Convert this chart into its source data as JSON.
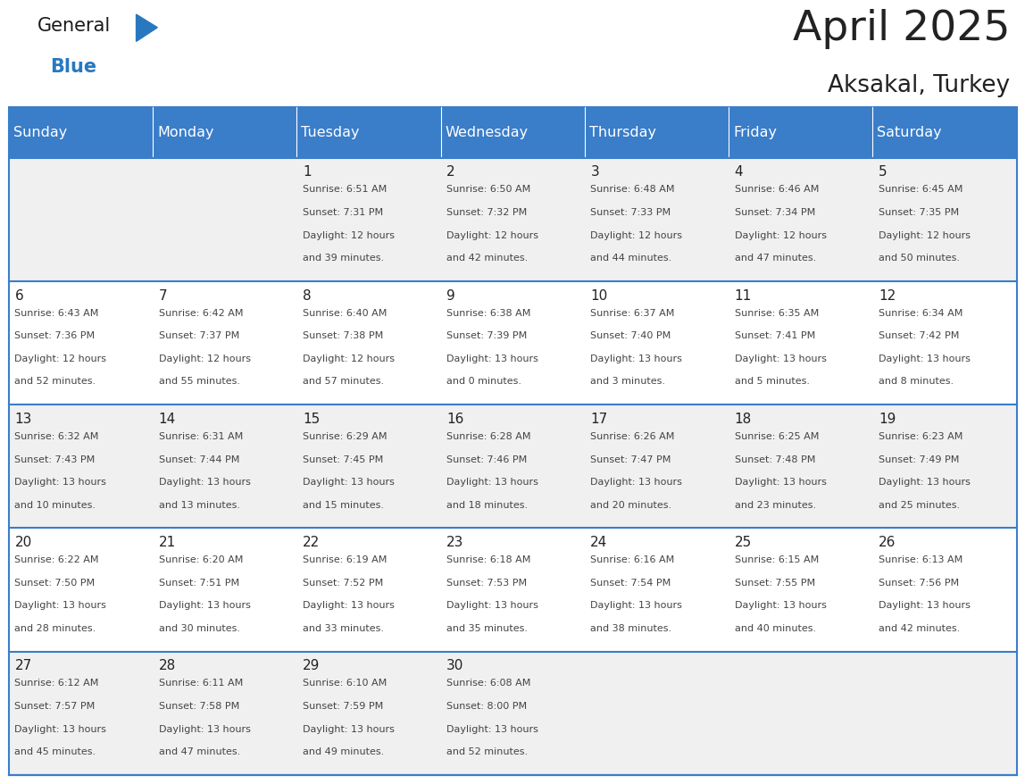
{
  "title": "April 2025",
  "subtitle": "Aksakal, Turkey",
  "header_bg": "#3A7DC9",
  "header_text_color": "#FFFFFF",
  "day_headers": [
    "Sunday",
    "Monday",
    "Tuesday",
    "Wednesday",
    "Thursday",
    "Friday",
    "Saturday"
  ],
  "cell_bg_even": "#F0F0F0",
  "cell_bg_odd": "#FFFFFF",
  "row_separator_color": "#3A7DC9",
  "text_color": "#444444",
  "number_color": "#222222",
  "logo_general_color": "#1a1a1a",
  "logo_blue_color": "#2878C0",
  "weeks": [
    [
      {
        "day": null,
        "info": null
      },
      {
        "day": null,
        "info": null
      },
      {
        "day": 1,
        "info": {
          "sunrise": "6:51 AM",
          "sunset": "7:31 PM",
          "daylight_hours": 12,
          "daylight_minutes": 39
        }
      },
      {
        "day": 2,
        "info": {
          "sunrise": "6:50 AM",
          "sunset": "7:32 PM",
          "daylight_hours": 12,
          "daylight_minutes": 42
        }
      },
      {
        "day": 3,
        "info": {
          "sunrise": "6:48 AM",
          "sunset": "7:33 PM",
          "daylight_hours": 12,
          "daylight_minutes": 44
        }
      },
      {
        "day": 4,
        "info": {
          "sunrise": "6:46 AM",
          "sunset": "7:34 PM",
          "daylight_hours": 12,
          "daylight_minutes": 47
        }
      },
      {
        "day": 5,
        "info": {
          "sunrise": "6:45 AM",
          "sunset": "7:35 PM",
          "daylight_hours": 12,
          "daylight_minutes": 50
        }
      }
    ],
    [
      {
        "day": 6,
        "info": {
          "sunrise": "6:43 AM",
          "sunset": "7:36 PM",
          "daylight_hours": 12,
          "daylight_minutes": 52
        }
      },
      {
        "day": 7,
        "info": {
          "sunrise": "6:42 AM",
          "sunset": "7:37 PM",
          "daylight_hours": 12,
          "daylight_minutes": 55
        }
      },
      {
        "day": 8,
        "info": {
          "sunrise": "6:40 AM",
          "sunset": "7:38 PM",
          "daylight_hours": 12,
          "daylight_minutes": 57
        }
      },
      {
        "day": 9,
        "info": {
          "sunrise": "6:38 AM",
          "sunset": "7:39 PM",
          "daylight_hours": 13,
          "daylight_minutes": 0
        }
      },
      {
        "day": 10,
        "info": {
          "sunrise": "6:37 AM",
          "sunset": "7:40 PM",
          "daylight_hours": 13,
          "daylight_minutes": 3
        }
      },
      {
        "day": 11,
        "info": {
          "sunrise": "6:35 AM",
          "sunset": "7:41 PM",
          "daylight_hours": 13,
          "daylight_minutes": 5
        }
      },
      {
        "day": 12,
        "info": {
          "sunrise": "6:34 AM",
          "sunset": "7:42 PM",
          "daylight_hours": 13,
          "daylight_minutes": 8
        }
      }
    ],
    [
      {
        "day": 13,
        "info": {
          "sunrise": "6:32 AM",
          "sunset": "7:43 PM",
          "daylight_hours": 13,
          "daylight_minutes": 10
        }
      },
      {
        "day": 14,
        "info": {
          "sunrise": "6:31 AM",
          "sunset": "7:44 PM",
          "daylight_hours": 13,
          "daylight_minutes": 13
        }
      },
      {
        "day": 15,
        "info": {
          "sunrise": "6:29 AM",
          "sunset": "7:45 PM",
          "daylight_hours": 13,
          "daylight_minutes": 15
        }
      },
      {
        "day": 16,
        "info": {
          "sunrise": "6:28 AM",
          "sunset": "7:46 PM",
          "daylight_hours": 13,
          "daylight_minutes": 18
        }
      },
      {
        "day": 17,
        "info": {
          "sunrise": "6:26 AM",
          "sunset": "7:47 PM",
          "daylight_hours": 13,
          "daylight_minutes": 20
        }
      },
      {
        "day": 18,
        "info": {
          "sunrise": "6:25 AM",
          "sunset": "7:48 PM",
          "daylight_hours": 13,
          "daylight_minutes": 23
        }
      },
      {
        "day": 19,
        "info": {
          "sunrise": "6:23 AM",
          "sunset": "7:49 PM",
          "daylight_hours": 13,
          "daylight_minutes": 25
        }
      }
    ],
    [
      {
        "day": 20,
        "info": {
          "sunrise": "6:22 AM",
          "sunset": "7:50 PM",
          "daylight_hours": 13,
          "daylight_minutes": 28
        }
      },
      {
        "day": 21,
        "info": {
          "sunrise": "6:20 AM",
          "sunset": "7:51 PM",
          "daylight_hours": 13,
          "daylight_minutes": 30
        }
      },
      {
        "day": 22,
        "info": {
          "sunrise": "6:19 AM",
          "sunset": "7:52 PM",
          "daylight_hours": 13,
          "daylight_minutes": 33
        }
      },
      {
        "day": 23,
        "info": {
          "sunrise": "6:18 AM",
          "sunset": "7:53 PM",
          "daylight_hours": 13,
          "daylight_minutes": 35
        }
      },
      {
        "day": 24,
        "info": {
          "sunrise": "6:16 AM",
          "sunset": "7:54 PM",
          "daylight_hours": 13,
          "daylight_minutes": 38
        }
      },
      {
        "day": 25,
        "info": {
          "sunrise": "6:15 AM",
          "sunset": "7:55 PM",
          "daylight_hours": 13,
          "daylight_minutes": 40
        }
      },
      {
        "day": 26,
        "info": {
          "sunrise": "6:13 AM",
          "sunset": "7:56 PM",
          "daylight_hours": 13,
          "daylight_minutes": 42
        }
      }
    ],
    [
      {
        "day": 27,
        "info": {
          "sunrise": "6:12 AM",
          "sunset": "7:57 PM",
          "daylight_hours": 13,
          "daylight_minutes": 45
        }
      },
      {
        "day": 28,
        "info": {
          "sunrise": "6:11 AM",
          "sunset": "7:58 PM",
          "daylight_hours": 13,
          "daylight_minutes": 47
        }
      },
      {
        "day": 29,
        "info": {
          "sunrise": "6:10 AM",
          "sunset": "7:59 PM",
          "daylight_hours": 13,
          "daylight_minutes": 49
        }
      },
      {
        "day": 30,
        "info": {
          "sunrise": "6:08 AM",
          "sunset": "8:00 PM",
          "daylight_hours": 13,
          "daylight_minutes": 52
        }
      },
      {
        "day": null,
        "info": null
      },
      {
        "day": null,
        "info": null
      },
      {
        "day": null,
        "info": null
      }
    ]
  ]
}
